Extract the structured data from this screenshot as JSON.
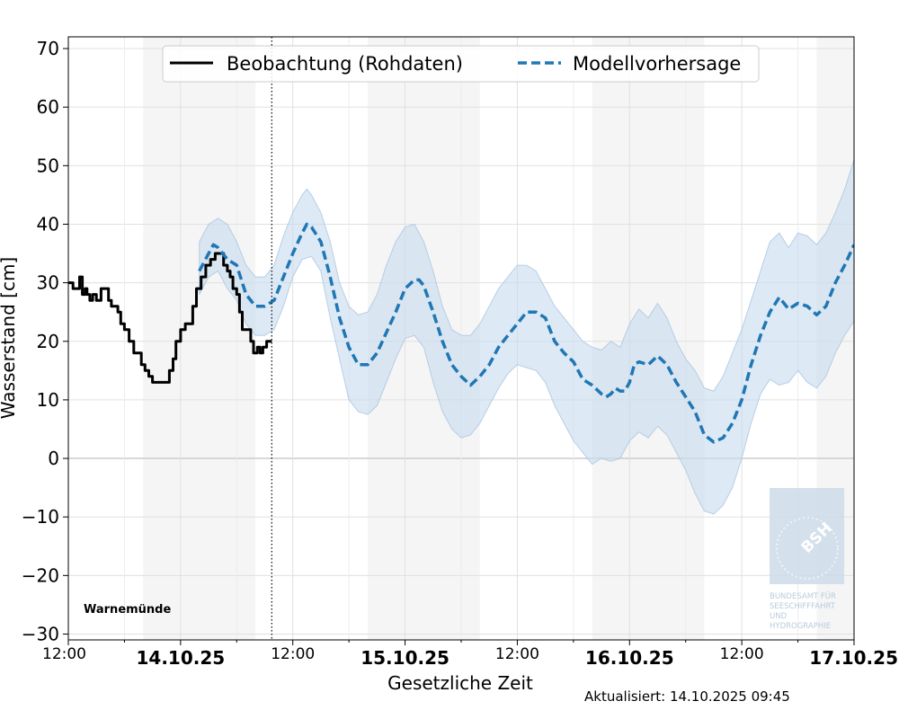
{
  "chart_data": {
    "type": "line",
    "ylabel": "Wasserstand [cm]",
    "xlabel": "Gesetzliche Zeit",
    "ylim": [
      -31,
      72
    ],
    "y_ticks": [
      70,
      60,
      50,
      40,
      30,
      20,
      10,
      0,
      -10,
      -20,
      -30
    ],
    "y_tick_labels": [
      "70",
      "60",
      "50",
      "40",
      "30",
      "20",
      "10",
      "0",
      "−10",
      "−20",
      "−30"
    ],
    "x_range_hours": [
      0,
      84
    ],
    "x_ticks": [
      {
        "h": 0,
        "label": "12:00",
        "kind": "time"
      },
      {
        "h": 12,
        "label": "14.10.25",
        "kind": "date"
      },
      {
        "h": 24,
        "label": "12:00",
        "kind": "time"
      },
      {
        "h": 36,
        "label": "15.10.25",
        "kind": "date"
      },
      {
        "h": 48,
        "label": "12:00",
        "kind": "time"
      },
      {
        "h": 60,
        "label": "16.10.25",
        "kind": "date"
      },
      {
        "h": 72,
        "label": "12:00",
        "kind": "time"
      },
      {
        "h": 84,
        "label": "17.10.25",
        "kind": "date"
      }
    ],
    "minor_x_ticks": [
      6,
      18,
      30,
      42,
      54,
      66,
      78
    ],
    "night_shading": [
      [
        8,
        20
      ],
      [
        32,
        44
      ],
      [
        56,
        68
      ],
      [
        80,
        84
      ]
    ],
    "now_hour": 21.75,
    "grid": true,
    "legend_position": "top-center",
    "colors": {
      "observation": "#000000",
      "forecast": "#1f77b4",
      "band": "#c6dbef",
      "night": "#f5f5f5",
      "zero_line": "#cccccc"
    },
    "series": [
      {
        "name": "Beobachtung (Rohdaten)",
        "style": "solid",
        "points": [
          [
            0,
            30
          ],
          [
            0.5,
            29
          ],
          [
            1,
            29
          ],
          [
            1.2,
            31
          ],
          [
            1.5,
            28
          ],
          [
            1.8,
            29
          ],
          [
            2,
            28
          ],
          [
            2.3,
            27
          ],
          [
            2.6,
            28
          ],
          [
            3,
            27
          ],
          [
            3.5,
            29
          ],
          [
            4,
            29
          ],
          [
            4.3,
            27
          ],
          [
            4.6,
            26
          ],
          [
            5,
            26
          ],
          [
            5.3,
            25
          ],
          [
            5.6,
            23
          ],
          [
            6,
            22
          ],
          [
            6.5,
            20
          ],
          [
            7,
            18
          ],
          [
            7.5,
            18
          ],
          [
            7.8,
            16
          ],
          [
            8.2,
            15
          ],
          [
            8.6,
            14
          ],
          [
            9,
            13
          ],
          [
            9.5,
            13
          ],
          [
            10,
            13
          ],
          [
            10.5,
            13
          ],
          [
            10.8,
            15
          ],
          [
            11.2,
            17
          ],
          [
            11.5,
            20
          ],
          [
            12,
            22
          ],
          [
            12.5,
            23
          ],
          [
            13,
            23
          ],
          [
            13.3,
            26
          ],
          [
            13.7,
            29
          ],
          [
            14.2,
            31
          ],
          [
            14.7,
            33
          ],
          [
            15.2,
            34
          ],
          [
            15.7,
            35
          ],
          [
            16.2,
            35
          ],
          [
            16.6,
            33
          ],
          [
            17,
            32
          ],
          [
            17.3,
            31
          ],
          [
            17.6,
            29
          ],
          [
            18,
            28
          ],
          [
            18.3,
            25
          ],
          [
            18.6,
            22
          ],
          [
            19,
            22
          ],
          [
            19.5,
            20
          ],
          [
            19.8,
            18
          ],
          [
            20.2,
            19
          ],
          [
            20.5,
            18
          ],
          [
            20.8,
            19
          ],
          [
            21.2,
            20
          ],
          [
            21.75,
            20
          ]
        ]
      },
      {
        "name": "Modellvorhersage",
        "style": "dashed",
        "points": [
          [
            14,
            32
          ],
          [
            15,
            35
          ],
          [
            15.5,
            36.5
          ],
          [
            16,
            36
          ],
          [
            17,
            34
          ],
          [
            18,
            33
          ],
          [
            19,
            28
          ],
          [
            20,
            26
          ],
          [
            21,
            26
          ],
          [
            22,
            27
          ],
          [
            23,
            31
          ],
          [
            24,
            35
          ],
          [
            25,
            38.5
          ],
          [
            25.5,
            40
          ],
          [
            26,
            39.5
          ],
          [
            27,
            37
          ],
          [
            28,
            31
          ],
          [
            29,
            24
          ],
          [
            30,
            19
          ],
          [
            31,
            16
          ],
          [
            32,
            16
          ],
          [
            33,
            18
          ],
          [
            34,
            21.5
          ],
          [
            35,
            25
          ],
          [
            36,
            29
          ],
          [
            37,
            30.5
          ],
          [
            37.5,
            30.5
          ],
          [
            38,
            29.5
          ],
          [
            39,
            25
          ],
          [
            40,
            20
          ],
          [
            41,
            16
          ],
          [
            42,
            14
          ],
          [
            43,
            12.5
          ],
          [
            44,
            14
          ],
          [
            45,
            16
          ],
          [
            46,
            19
          ],
          [
            47,
            21
          ],
          [
            48,
            23
          ],
          [
            49,
            25
          ],
          [
            50,
            25
          ],
          [
            51,
            24
          ],
          [
            52,
            20
          ],
          [
            53,
            18
          ],
          [
            54,
            16.5
          ],
          [
            55,
            13.5
          ],
          [
            56,
            12.5
          ],
          [
            57,
            11
          ],
          [
            57.5,
            10.5
          ],
          [
            58,
            11
          ],
          [
            58.5,
            12
          ],
          [
            59,
            11.5
          ],
          [
            59.5,
            11.5
          ],
          [
            60,
            13
          ],
          [
            60.5,
            16
          ],
          [
            61,
            16.5
          ],
          [
            62,
            16
          ],
          [
            63,
            17.5
          ],
          [
            64,
            16
          ],
          [
            65,
            13
          ],
          [
            66,
            10.5
          ],
          [
            67,
            8
          ],
          [
            68,
            4
          ],
          [
            69,
            2.8
          ],
          [
            70,
            3.5
          ],
          [
            71,
            6
          ],
          [
            72,
            10
          ],
          [
            73,
            16
          ],
          [
            74,
            21
          ],
          [
            75,
            25
          ],
          [
            76,
            27.5
          ],
          [
            77,
            25.5
          ],
          [
            78,
            26.5
          ],
          [
            79,
            26
          ],
          [
            80,
            24.5
          ],
          [
            81,
            26
          ],
          [
            82,
            30
          ],
          [
            83,
            33
          ],
          [
            84,
            36.5
          ]
        ]
      }
    ],
    "uncertainty_band": {
      "upper": [
        [
          14,
          37
        ],
        [
          15,
          40
        ],
        [
          16,
          41
        ],
        [
          17,
          40
        ],
        [
          18,
          37
        ],
        [
          19,
          33
        ],
        [
          20,
          31
        ],
        [
          21,
          31
        ],
        [
          22,
          33
        ],
        [
          23,
          38
        ],
        [
          24,
          42
        ],
        [
          25,
          45
        ],
        [
          25.5,
          46
        ],
        [
          26,
          45
        ],
        [
          27,
          42
        ],
        [
          28,
          37
        ],
        [
          29,
          30
        ],
        [
          30,
          26
        ],
        [
          31,
          24.5
        ],
        [
          32,
          25
        ],
        [
          33,
          28
        ],
        [
          34,
          33
        ],
        [
          35,
          37
        ],
        [
          36,
          39.5
        ],
        [
          37,
          40
        ],
        [
          38,
          37
        ],
        [
          39,
          32
        ],
        [
          40,
          26
        ],
        [
          41,
          22
        ],
        [
          42,
          21
        ],
        [
          43,
          21
        ],
        [
          44,
          23
        ],
        [
          45,
          26
        ],
        [
          46,
          29
        ],
        [
          47,
          31
        ],
        [
          48,
          33
        ],
        [
          49,
          33
        ],
        [
          50,
          32
        ],
        [
          51,
          29
        ],
        [
          52,
          26
        ],
        [
          53,
          24
        ],
        [
          54,
          22
        ],
        [
          55,
          20
        ],
        [
          56,
          19
        ],
        [
          57,
          18.5
        ],
        [
          58,
          20
        ],
        [
          59,
          19
        ],
        [
          60,
          23
        ],
        [
          61,
          25.5
        ],
        [
          62,
          24
        ],
        [
          63,
          26.5
        ],
        [
          64,
          24
        ],
        [
          65,
          20
        ],
        [
          66,
          17
        ],
        [
          67,
          15
        ],
        [
          68,
          12
        ],
        [
          69,
          11.5
        ],
        [
          70,
          14
        ],
        [
          71,
          18
        ],
        [
          72,
          22
        ],
        [
          73,
          27
        ],
        [
          74,
          32
        ],
        [
          75,
          37
        ],
        [
          76,
          38.5
        ],
        [
          77,
          36
        ],
        [
          78,
          38.5
        ],
        [
          79,
          38
        ],
        [
          80,
          36.5
        ],
        [
          81,
          38.5
        ],
        [
          82,
          42
        ],
        [
          83,
          46
        ],
        [
          84,
          51
        ]
      ],
      "lower": [
        [
          14,
          28
        ],
        [
          15,
          31
        ],
        [
          16,
          32
        ],
        [
          17,
          29
        ],
        [
          18,
          27
        ],
        [
          19,
          23
        ],
        [
          20,
          21
        ],
        [
          21,
          21
        ],
        [
          22,
          22
        ],
        [
          23,
          26
        ],
        [
          24,
          31
        ],
        [
          25,
          34
        ],
        [
          26,
          34.5
        ],
        [
          27,
          32
        ],
        [
          28,
          24
        ],
        [
          29,
          17
        ],
        [
          30,
          10
        ],
        [
          31,
          8
        ],
        [
          32,
          7.5
        ],
        [
          33,
          9
        ],
        [
          34,
          13
        ],
        [
          35,
          17
        ],
        [
          36,
          20.5
        ],
        [
          37,
          21
        ],
        [
          38,
          19
        ],
        [
          39,
          13
        ],
        [
          40,
          8
        ],
        [
          41,
          5
        ],
        [
          42,
          3.5
        ],
        [
          43,
          4
        ],
        [
          44,
          6
        ],
        [
          45,
          9
        ],
        [
          46,
          12
        ],
        [
          47,
          14.5
        ],
        [
          48,
          16
        ],
        [
          49,
          15.5
        ],
        [
          50,
          15
        ],
        [
          51,
          13
        ],
        [
          52,
          9
        ],
        [
          53,
          6
        ],
        [
          54,
          3
        ],
        [
          55,
          1
        ],
        [
          56,
          -1
        ],
        [
          57,
          0
        ],
        [
          58,
          -0.5
        ],
        [
          59,
          0
        ],
        [
          60,
          3
        ],
        [
          61,
          4.5
        ],
        [
          62,
          3.5
        ],
        [
          63,
          5.5
        ],
        [
          64,
          4
        ],
        [
          65,
          1
        ],
        [
          66,
          -2
        ],
        [
          67,
          -6
        ],
        [
          68,
          -9
        ],
        [
          69,
          -9.5
        ],
        [
          70,
          -8
        ],
        [
          71,
          -5
        ],
        [
          72,
          0
        ],
        [
          73,
          6
        ],
        [
          74,
          11
        ],
        [
          75,
          13.5
        ],
        [
          76,
          12.5
        ],
        [
          77,
          13
        ],
        [
          78,
          15
        ],
        [
          79,
          13
        ],
        [
          80,
          12
        ],
        [
          81,
          14
        ],
        [
          82,
          18
        ],
        [
          83,
          21
        ],
        [
          84,
          23.5
        ]
      ]
    }
  },
  "labels": {
    "station": "Warnemünde",
    "updated": "Aktualisiert: 14.10.2025 09:45",
    "logo_abbr": "BSH",
    "logo_lines": [
      "BUNDESAMT FÜR",
      "SEESCHIFFFAHRT",
      "UND",
      "HYDROGRAPHIE"
    ]
  }
}
